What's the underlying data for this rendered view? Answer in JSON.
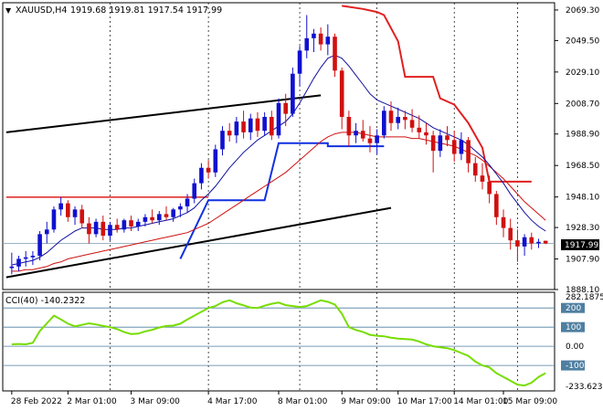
{
  "symbol": "XAUUSD,H4",
  "ohlc_readout": "1919.68 1919.81 1917.54 1917.99",
  "current_price_label": "1917.99",
  "indicator_label": "CCI(40) -140.2322",
  "colors": {
    "bull": "#1010d0",
    "bear": "#d01010",
    "ma_fast": "#1010a0",
    "ma_slow": "#d01010",
    "stop_line_blue": "#1030e0",
    "stop_line_red": "#e02020",
    "cci": "#77dd00",
    "level_line": "#4f7fa0",
    "trend": "#000000"
  },
  "chart_data": {
    "type": "candlestick",
    "ylim": [
      1888.1,
      2074.0
    ],
    "y_ticks": [
      "2069.30",
      "2049.50",
      "2029.10",
      "2008.70",
      "1988.90",
      "1968.50",
      "1948.10",
      "1928.30",
      "1907.90",
      "1888.10"
    ],
    "x_ticks": [
      "28 Feb 2022",
      "2 Mar 01:00",
      "3 Mar 09:00",
      "4 Mar 17:00",
      "8 Mar 01:00",
      "9 Mar 09:00",
      "10 Mar 17:00",
      "14 Mar 01:00",
      "15 Mar 09:00"
    ],
    "candles": [
      [
        1902.0,
        1912.0,
        1898.0,
        1903.0
      ],
      [
        1903.0,
        1910.0,
        1900.0,
        1908.0
      ],
      [
        1908.0,
        1913.0,
        1903.0,
        1909.0
      ],
      [
        1909.0,
        1913.0,
        1904.0,
        1910.0
      ],
      [
        1910.0,
        1926.0,
        1907.0,
        1924.0
      ],
      [
        1924.0,
        1932.0,
        1918.0,
        1927.0
      ],
      [
        1927.0,
        1942.0,
        1925.0,
        1940.0
      ],
      [
        1940.0,
        1948.0,
        1936.0,
        1944.0
      ],
      [
        1944.0,
        1946.0,
        1932.0,
        1935.0
      ],
      [
        1935.0,
        1942.0,
        1930.0,
        1940.0
      ],
      [
        1940.0,
        1943.0,
        1928.0,
        1931.0
      ],
      [
        1931.0,
        1935.0,
        1918.0,
        1924.0
      ],
      [
        1924.0,
        1934.0,
        1922.0,
        1932.0
      ],
      [
        1932.0,
        1936.0,
        1920.0,
        1923.0
      ],
      [
        1923.0,
        1932.0,
        1920.0,
        1930.0
      ],
      [
        1930.0,
        1934.0,
        1925.0,
        1927.0
      ],
      [
        1927.0,
        1934.0,
        1925.0,
        1933.0
      ],
      [
        1933.0,
        1936.0,
        1926.0,
        1929.0
      ],
      [
        1929.0,
        1934.0,
        1926.0,
        1932.0
      ],
      [
        1932.0,
        1937.0,
        1929.0,
        1935.0
      ],
      [
        1935.0,
        1940.0,
        1931.0,
        1933.0
      ],
      [
        1933.0,
        1939.0,
        1930.0,
        1937.0
      ],
      [
        1937.0,
        1942.0,
        1933.0,
        1935.0
      ],
      [
        1935.0,
        1941.0,
        1932.0,
        1940.0
      ],
      [
        1940.0,
        1944.0,
        1935.0,
        1942.0
      ],
      [
        1942.0,
        1950.0,
        1938.0,
        1947.0
      ],
      [
        1947.0,
        1960.0,
        1944.0,
        1957.0
      ],
      [
        1957.0,
        1970.0,
        1953.0,
        1967.0
      ],
      [
        1967.0,
        1972.0,
        1960.0,
        1964.0
      ],
      [
        1964.0,
        1982.0,
        1961.0,
        1979.0
      ],
      [
        1979.0,
        1994.0,
        1975.0,
        1991.0
      ],
      [
        1991.0,
        1996.0,
        1984.0,
        1988.0
      ],
      [
        1988.0,
        2000.0,
        1983.0,
        1997.0
      ],
      [
        1997.0,
        2004.0,
        1986.0,
        1990.0
      ],
      [
        1990.0,
        2002.0,
        1985.0,
        1999.0
      ],
      [
        1999.0,
        2003.0,
        1987.0,
        1991.0
      ],
      [
        1991.0,
        2003.0,
        1988.0,
        2000.0
      ],
      [
        2000.0,
        2004.0,
        1985.0,
        1988.0
      ],
      [
        1988.0,
        2012.0,
        1986.0,
        2009.0
      ],
      [
        2009.0,
        2015.0,
        1994.0,
        2002.0
      ],
      [
        2002.0,
        2032.0,
        2000.0,
        2028.0
      ],
      [
        2028.0,
        2046.0,
        2020.0,
        2043.0
      ],
      [
        2043.0,
        2066.0,
        2038.0,
        2051.0
      ],
      [
        2051.0,
        2057.0,
        2042.0,
        2054.0
      ],
      [
        2054.0,
        2058.0,
        2043.0,
        2047.0
      ],
      [
        2047.0,
        2060.0,
        2040.0,
        2052.0
      ],
      [
        2052.0,
        2054.0,
        2026.0,
        2030.0
      ],
      [
        2030.0,
        2032.0,
        1992.0,
        2000.0
      ],
      [
        2000.0,
        2004.0,
        1981.0,
        1988.0
      ],
      [
        1988.0,
        1996.0,
        1983.0,
        1991.0
      ],
      [
        1991.0,
        1998.0,
        1984.0,
        1986.0
      ],
      [
        1986.0,
        1994.0,
        1977.0,
        1983.0
      ],
      [
        1983.0,
        1992.0,
        1976.0,
        1988.0
      ],
      [
        1988.0,
        2007.0,
        1986.0,
        2004.0
      ],
      [
        2004.0,
        2010.0,
        1991.0,
        1996.0
      ],
      [
        1996.0,
        2006.0,
        1992.0,
        2000.0
      ],
      [
        2000.0,
        2004.0,
        1992.0,
        1998.0
      ],
      [
        1998.0,
        2005.0,
        1990.0,
        1993.0
      ],
      [
        1993.0,
        2001.0,
        1986.0,
        1990.0
      ],
      [
        1990.0,
        1996.0,
        1982.0,
        1988.0
      ],
      [
        1988.0,
        1991.0,
        1964.0,
        1978.0
      ],
      [
        1978.0,
        1992.0,
        1974.0,
        1988.0
      ],
      [
        1988.0,
        1994.0,
        1981.0,
        1985.0
      ],
      [
        1985.0,
        1991.0,
        1971.0,
        1976.0
      ],
      [
        1976.0,
        1990.0,
        1972.0,
        1985.0
      ],
      [
        1985.0,
        1987.0,
        1964.0,
        1970.0
      ],
      [
        1970.0,
        1974.0,
        1958.0,
        1962.0
      ],
      [
        1962.0,
        1970.0,
        1953.0,
        1958.0
      ],
      [
        1958.0,
        1962.0,
        1944.0,
        1950.0
      ],
      [
        1950.0,
        1952.0,
        1930.0,
        1935.0
      ],
      [
        1935.0,
        1940.0,
        1922.0,
        1928.0
      ],
      [
        1928.0,
        1934.0,
        1914.0,
        1920.0
      ],
      [
        1920.0,
        1927.0,
        1906.0,
        1916.0
      ],
      [
        1916.0,
        1924.0,
        1910.0,
        1922.0
      ],
      [
        1922.0,
        1925.0,
        1914.0,
        1918.0
      ],
      [
        1918.0,
        1921.0,
        1915.0,
        1919.0
      ],
      [
        1919.7,
        1919.8,
        1917.5,
        1918.0
      ]
    ],
    "ma_fast": [
      1904,
      1905,
      1906,
      1907,
      1909,
      1912,
      1916,
      1920,
      1923,
      1926,
      1928,
      1928,
      1928,
      1927,
      1927,
      1927,
      1928,
      1928,
      1929,
      1930,
      1931,
      1932,
      1933,
      1934,
      1936,
      1938,
      1941,
      1946,
      1950,
      1955,
      1961,
      1967,
      1972,
      1977,
      1981,
      1985,
      1988,
      1991,
      1994,
      1997,
      2002,
      2009,
      2017,
      2025,
      2032,
      2038,
      2040,
      2038,
      2033,
      2027,
      2021,
      2015,
      2011,
      2009,
      2007,
      2005,
      2003,
      2001,
      1999,
      1996,
      1993,
      1991,
      1989,
      1987,
      1985,
      1982,
      1978,
      1974,
      1969,
      1963,
      1957,
      1950,
      1944,
      1938,
      1933,
      1929,
      1926
    ],
    "ma_slow": [
      1900,
      1900,
      1901,
      1901,
      1902,
      1903,
      1905,
      1906,
      1908,
      1909,
      1910,
      1911,
      1912,
      1913,
      1914,
      1915,
      1916,
      1917,
      1918,
      1919,
      1920,
      1921,
      1922,
      1923,
      1924,
      1925,
      1927,
      1929,
      1931,
      1934,
      1937,
      1940,
      1943,
      1946,
      1949,
      1952,
      1955,
      1958,
      1961,
      1964,
      1968,
      1972,
      1976,
      1980,
      1984,
      1987,
      1989,
      1990,
      1990,
      1990,
      1989,
      1988,
      1987,
      1987,
      1987,
      1987,
      1987,
      1986,
      1986,
      1985,
      1984,
      1983,
      1982,
      1981,
      1979,
      1977,
      1975,
      1972,
      1968,
      1964,
      1960,
      1955,
      1950,
      1945,
      1941,
      1937,
      1933
    ],
    "support_resistance_blue": [
      [
        24,
        1908
      ],
      [
        28,
        1946
      ],
      [
        36,
        1946
      ],
      [
        38,
        1983
      ],
      [
        45,
        1983
      ],
      [
        45,
        1981
      ],
      [
        53,
        1981
      ]
    ],
    "support_resistance_red": [
      [
        47,
        2072
      ],
      [
        50,
        2070
      ],
      [
        52,
        2068
      ],
      [
        53,
        2066
      ],
      [
        55,
        2049
      ],
      [
        56,
        2026
      ],
      [
        60,
        2026
      ],
      [
        61,
        2012
      ],
      [
        63,
        2008
      ],
      [
        65,
        1996
      ],
      [
        67,
        1980
      ],
      [
        68,
        1958
      ],
      [
        74,
        1958
      ]
    ],
    "trend_upper": [
      [
        0,
        1990
      ],
      [
        44,
        2014
      ]
    ],
    "trend_lower": [
      [
        0,
        1896
      ],
      [
        54,
        1941
      ]
    ],
    "horizontal_red": {
      "y": 1948,
      "x": [
        0,
        28
      ]
    },
    "cci": {
      "label": "CCI(40)",
      "ylim": [
        -233,
        282
      ],
      "levels": [
        200,
        100,
        0,
        -100
      ],
      "right_labels": [
        "282.1875",
        "200",
        "100",
        "0.00",
        "-100",
        "-233.6237"
      ],
      "values": [
        10,
        12,
        10,
        18,
        80,
        120,
        160,
        140,
        118,
        104,
        112,
        120,
        114,
        106,
        100,
        90,
        74,
        64,
        66,
        78,
        86,
        98,
        106,
        108,
        118,
        140,
        160,
        180,
        200,
        210,
        230,
        240,
        225,
        214,
        202,
        200,
        212,
        222,
        228,
        215,
        210,
        205,
        210,
        225,
        240,
        232,
        218,
        170,
        100,
        85,
        75,
        60,
        55,
        52,
        45,
        40,
        38,
        35,
        25,
        10,
        0,
        -5,
        -10,
        -20,
        -35,
        -50,
        -80,
        -100,
        -110,
        -140,
        -160,
        -180,
        -200,
        -205,
        -190,
        -160,
        -140
      ]
    }
  }
}
